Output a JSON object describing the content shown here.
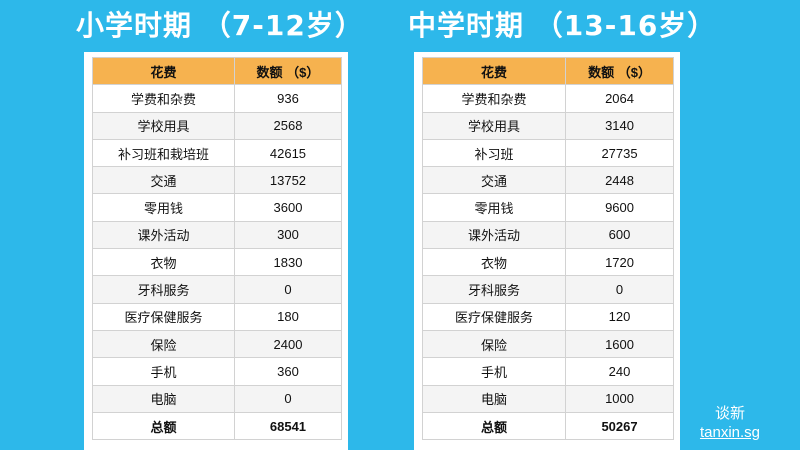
{
  "left": {
    "title": "小学时期 （7-12岁）",
    "header": {
      "item": "花费",
      "amount": "数额 （$）"
    },
    "rows": [
      {
        "item": "学费和杂费",
        "amount": "936"
      },
      {
        "item": "学校用具",
        "amount": "2568"
      },
      {
        "item": "补习班和栽培班",
        "amount": "42615"
      },
      {
        "item": "交通",
        "amount": "13752"
      },
      {
        "item": "零用钱",
        "amount": "3600"
      },
      {
        "item": "课外活动",
        "amount": "300"
      },
      {
        "item": "衣物",
        "amount": "1830"
      },
      {
        "item": "牙科服务",
        "amount": "0"
      },
      {
        "item": "医疗保健服务",
        "amount": "180"
      },
      {
        "item": "保险",
        "amount": "2400"
      },
      {
        "item": "手机",
        "amount": "360"
      },
      {
        "item": "电脑",
        "amount": "0"
      },
      {
        "item": "总额",
        "amount": "68541"
      }
    ]
  },
  "right": {
    "title": "中学时期 （13-16岁）",
    "header": {
      "item": "花费",
      "amount": "数额 （$）"
    },
    "rows": [
      {
        "item": "学费和杂费",
        "amount": "2064"
      },
      {
        "item": "学校用具",
        "amount": "3140"
      },
      {
        "item": "补习班",
        "amount": "27735"
      },
      {
        "item": "交通",
        "amount": "2448"
      },
      {
        "item": "零用钱",
        "amount": "9600"
      },
      {
        "item": "课外活动",
        "amount": "600"
      },
      {
        "item": "衣物",
        "amount": "1720"
      },
      {
        "item": "牙科服务",
        "amount": "0"
      },
      {
        "item": "医疗保健服务",
        "amount": "120"
      },
      {
        "item": "保险",
        "amount": "1600"
      },
      {
        "item": "手机",
        "amount": "240"
      },
      {
        "item": "电脑",
        "amount": "1000"
      },
      {
        "item": "总额",
        "amount": "50267"
      }
    ]
  },
  "brand": {
    "name": "谈新",
    "url": "tanxin.sg"
  },
  "colors": {
    "background": "#2db8ea",
    "table_header": "#f6b24f",
    "row_alt": "#f4f4f4"
  }
}
